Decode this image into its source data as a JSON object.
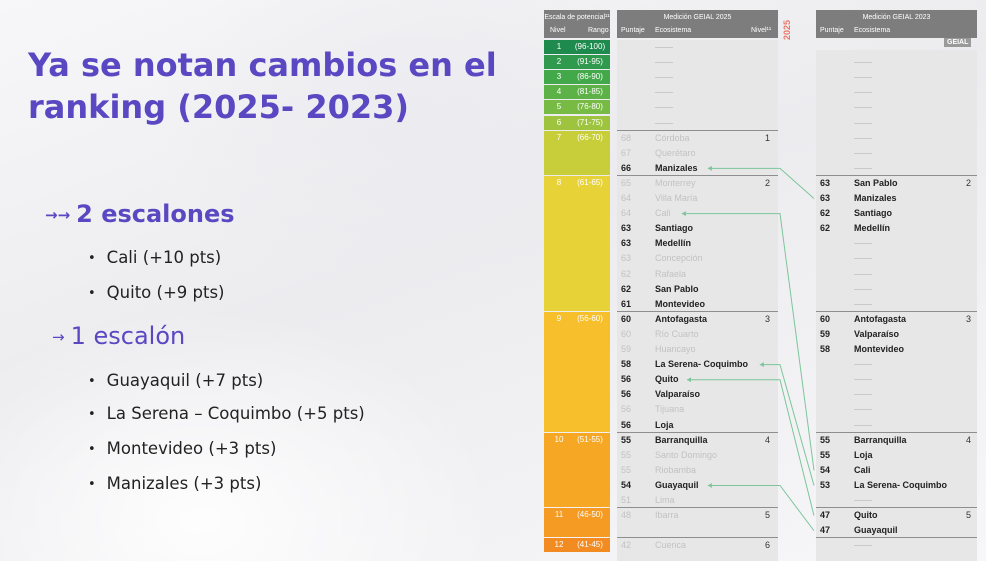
{
  "title": "Ya se notan cambios en el ranking (2025- 2023)",
  "section1": {
    "arrow": "→→",
    "heading": "2 escalones",
    "items": [
      "Cali (+10 pts)",
      "Quito (+9 pts)"
    ]
  },
  "section2": {
    "arrow": "→",
    "heading": "1 escalón",
    "items": [
      "Guayaquil (+7 pts)",
      "La Serena – Coquimbo (+5 pts)",
      "Montevideo (+3 pts)",
      "Manizales (+3 pts)"
    ]
  },
  "scale": {
    "header": "Escala de potencial¹¹",
    "col_nivel": "Nivel",
    "col_rango": "Rango",
    "levels": [
      {
        "n": "1",
        "r": "(96-100)",
        "color": "#1e8a4e"
      },
      {
        "n": "2",
        "r": "(91-95)",
        "color": "#2f9a4d"
      },
      {
        "n": "3",
        "r": "(86-90)",
        "color": "#43a84a"
      },
      {
        "n": "4",
        "r": "(81-85)",
        "color": "#5db247"
      },
      {
        "n": "5",
        "r": "(76-80)",
        "color": "#78bb44"
      },
      {
        "n": "6",
        "r": "(71-75)",
        "color": "#9ec43f"
      },
      {
        "n": "7",
        "r": "(66-70)",
        "color": "#c7ce3a"
      },
      {
        "n": "8",
        "r": "(61-65)",
        "color": "#e7d238"
      },
      {
        "n": "9",
        "r": "(56-60)",
        "color": "#f7bf2c"
      },
      {
        "n": "10",
        "r": "(51-55)",
        "color": "#f6a824"
      },
      {
        "n": "11",
        "r": "(46-50)",
        "color": "#f59a23"
      },
      {
        "n": "12",
        "r": "(41-45)",
        "color": "#f28c22"
      }
    ]
  },
  "y2025": {
    "header": "Medición GEIAL 2025",
    "col_puntaje": "Puntaje",
    "col_ecosistema": "Ecosistema",
    "col_nivel": "Nivel¹¹",
    "year_tag": "2025",
    "level_tags": [
      "1",
      "2",
      "3",
      "4",
      "5",
      "6"
    ],
    "rows": [
      {
        "s": "68",
        "n": "Córdoba",
        "f": true
      },
      {
        "s": "67",
        "n": "Querétaro",
        "f": true
      },
      {
        "s": "66",
        "n": "Manizales",
        "f": false
      },
      {
        "s": "65",
        "n": "Monterrey",
        "f": true
      },
      {
        "s": "64",
        "n": "Villa María",
        "f": true
      },
      {
        "s": "64",
        "n": "Cali",
        "f": true
      },
      {
        "s": "63",
        "n": "Santiago",
        "f": false
      },
      {
        "s": "63",
        "n": "Medellín",
        "f": false
      },
      {
        "s": "63",
        "n": "Concepción",
        "f": true
      },
      {
        "s": "62",
        "n": "Rafaela",
        "f": true
      },
      {
        "s": "62",
        "n": "San Pablo",
        "f": false
      },
      {
        "s": "61",
        "n": "Montevideo",
        "f": false
      },
      {
        "s": "60",
        "n": "Antofagasta",
        "f": false
      },
      {
        "s": "60",
        "n": "Río Cuarto",
        "f": true
      },
      {
        "s": "59",
        "n": "Huancayo",
        "f": true
      },
      {
        "s": "58",
        "n": "La Serena- Coquimbo",
        "f": false
      },
      {
        "s": "56",
        "n": "Quito",
        "f": false
      },
      {
        "s": "56",
        "n": "Valparaíso",
        "f": false
      },
      {
        "s": "56",
        "n": "Tijuana",
        "f": true
      },
      {
        "s": "56",
        "n": "Loja",
        "f": false
      },
      {
        "s": "55",
        "n": "Barranquilla",
        "f": false
      },
      {
        "s": "55",
        "n": "Santo Domingo",
        "f": true
      },
      {
        "s": "55",
        "n": "Riobamba",
        "f": true
      },
      {
        "s": "54",
        "n": "Guayaquil",
        "f": false
      },
      {
        "s": "51",
        "n": "Lima",
        "f": true
      },
      {
        "s": "48",
        "n": "Ibarra",
        "f": true
      },
      {
        "s": "",
        "n": "",
        "f": true
      },
      {
        "s": "42",
        "n": "Cuenca",
        "f": true
      }
    ]
  },
  "y2023": {
    "header": "Medición GEIAL 2023",
    "col_puntaje": "Puntaje",
    "col_ecosistema": "Ecosistema",
    "logo": "GEIAL",
    "level_tags": [
      "2",
      "3",
      "4",
      "5"
    ],
    "rows": [
      {
        "s": "63",
        "n": "San Pablo"
      },
      {
        "s": "63",
        "n": "Manizales"
      },
      {
        "s": "62",
        "n": "Santiago"
      },
      {
        "s": "62",
        "n": "Medellín"
      },
      {
        "s": "60",
        "n": "Antofagasta"
      },
      {
        "s": "59",
        "n": "Valparaíso"
      },
      {
        "s": "58",
        "n": "Montevideo"
      },
      {
        "s": "55",
        "n": "Barranquilla"
      },
      {
        "s": "55",
        "n": "Loja"
      },
      {
        "s": "54",
        "n": "Cali"
      },
      {
        "s": "53",
        "n": "La Serena- Coquimbo"
      },
      {
        "s": "47",
        "n": "Quito"
      },
      {
        "s": "47",
        "n": "Guayaquil"
      }
    ]
  }
}
